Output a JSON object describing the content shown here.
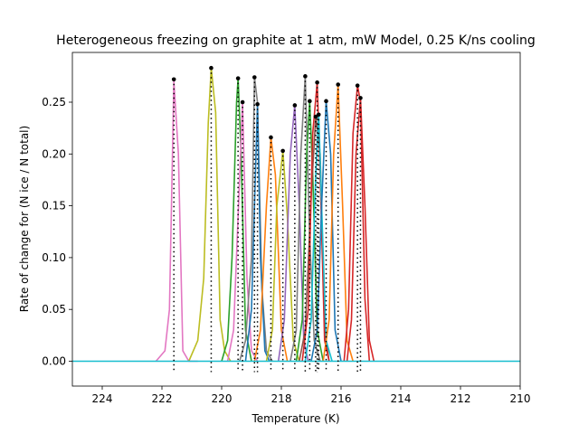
{
  "chart_data": {
    "type": "line",
    "title": "Heterogeneous freezing on graphite at 1 atm, mW Model, 0.25 K/ns cooling",
    "xlabel": "Temperature (K)",
    "ylabel": "Rate of change for (N ice / N total)",
    "xlim": [
      225,
      210
    ],
    "ylim": [
      -0.024,
      0.298
    ],
    "x_reversed": true,
    "xticks": [
      224,
      222,
      220,
      218,
      216,
      214,
      212,
      210
    ],
    "yticks": [
      0.0,
      0.05,
      0.1,
      0.15,
      0.2,
      0.25
    ],
    "xtick_labels": [
      "224",
      "222",
      "220",
      "218",
      "216",
      "214",
      "212",
      "210"
    ],
    "ytick_labels": [
      "0.00",
      "0.05",
      "0.10",
      "0.15",
      "0.20",
      "0.25"
    ],
    "grid": false,
    "legend": "none",
    "series": [
      {
        "color": "#e377c2",
        "x": [
          222.2,
          221.9,
          221.75,
          221.6,
          221.45,
          221.3,
          221.1,
          220.8
        ],
        "y": [
          0,
          0.01,
          0.05,
          0.27,
          0.2,
          0.01,
          0,
          0
        ],
        "peak": [
          221.6,
          0.272
        ]
      },
      {
        "color": "#bcbd22",
        "x": [
          221.1,
          220.8,
          220.6,
          220.45,
          220.35,
          220.2,
          220.05,
          219.9,
          219.7
        ],
        "y": [
          0,
          0.02,
          0.08,
          0.23,
          0.283,
          0.24,
          0.04,
          0.01,
          0
        ],
        "peak": [
          220.35,
          0.283
        ]
      },
      {
        "color": "#2ca02c",
        "x": [
          220.0,
          219.8,
          219.65,
          219.5,
          219.45,
          219.35,
          219.2,
          219.0
        ],
        "y": [
          0,
          0.02,
          0.1,
          0.25,
          0.273,
          0.2,
          0.03,
          0
        ],
        "peak": [
          219.45,
          0.273
        ]
      },
      {
        "color": "#e377c2",
        "x": [
          219.8,
          219.6,
          219.45,
          219.3,
          219.15,
          219.0,
          218.8
        ],
        "y": [
          0,
          0.03,
          0.14,
          0.25,
          0.08,
          0.01,
          0
        ],
        "peak": [
          219.3,
          0.25
        ]
      },
      {
        "color": "#7f7f7f",
        "x": [
          219.4,
          219.2,
          219.0,
          218.9,
          218.8,
          218.65,
          218.5,
          218.3
        ],
        "y": [
          0,
          0.02,
          0.1,
          0.274,
          0.25,
          0.07,
          0.01,
          0
        ],
        "peak": [
          218.9,
          0.274
        ]
      },
      {
        "color": "#1f77b4",
        "x": [
          219.2,
          219.0,
          218.9,
          218.8,
          218.7,
          218.55,
          218.4
        ],
        "y": [
          0,
          0.05,
          0.15,
          0.248,
          0.1,
          0.01,
          0
        ],
        "peak": [
          218.8,
          0.248
        ]
      },
      {
        "color": "#ff7f0e",
        "x": [
          218.9,
          218.7,
          218.5,
          218.35,
          218.2,
          218.0,
          217.8
        ],
        "y": [
          0,
          0.03,
          0.15,
          0.216,
          0.18,
          0.03,
          0
        ],
        "peak": [
          218.35,
          0.216
        ]
      },
      {
        "color": "#bcbd22",
        "x": [
          218.5,
          218.3,
          218.15,
          217.95,
          217.8,
          217.6,
          217.4
        ],
        "y": [
          0,
          0.03,
          0.15,
          0.203,
          0.14,
          0.02,
          0
        ],
        "peak": [
          217.95,
          0.203
        ]
      },
      {
        "color": "#9467bd",
        "x": [
          218.1,
          217.9,
          217.7,
          217.55,
          217.4,
          217.25,
          217.1
        ],
        "y": [
          0,
          0.04,
          0.2,
          0.247,
          0.15,
          0.02,
          0
        ],
        "peak": [
          217.55,
          0.247
        ]
      },
      {
        "color": "#7f7f7f",
        "x": [
          217.7,
          217.5,
          217.35,
          217.2,
          217.05,
          216.9,
          216.7
        ],
        "y": [
          0,
          0.03,
          0.2,
          0.275,
          0.12,
          0.02,
          0
        ],
        "peak": [
          217.2,
          0.275
        ]
      },
      {
        "color": "#2ca02c",
        "x": [
          217.5,
          217.3,
          217.15,
          217.05,
          216.95,
          216.8,
          216.6
        ],
        "y": [
          0,
          0.04,
          0.2,
          0.251,
          0.18,
          0.03,
          0
        ],
        "peak": [
          217.05,
          0.251
        ]
      },
      {
        "color": "#8c564b",
        "x": [
          217.4,
          217.2,
          217.0,
          216.85,
          216.7,
          216.55,
          216.4
        ],
        "y": [
          0,
          0.03,
          0.16,
          0.236,
          0.2,
          0.03,
          0
        ],
        "peak": [
          216.85,
          0.236
        ]
      },
      {
        "color": "#d62728",
        "x": [
          217.3,
          217.1,
          216.95,
          216.8,
          216.7,
          216.55,
          216.4
        ],
        "y": [
          0,
          0.05,
          0.22,
          0.269,
          0.18,
          0.02,
          0
        ],
        "peak": [
          216.8,
          0.269
        ]
      },
      {
        "color": "#17becf",
        "x": [
          217.2,
          217.0,
          216.85,
          216.75,
          216.65,
          216.5,
          216.3
        ],
        "y": [
          0,
          0.04,
          0.18,
          0.238,
          0.15,
          0.02,
          0
        ],
        "peak": [
          216.75,
          0.238
        ]
      },
      {
        "color": "#1f77b4",
        "x": [
          217.0,
          216.8,
          216.65,
          216.5,
          216.35,
          216.2,
          216.0
        ],
        "y": [
          0,
          0.03,
          0.15,
          0.251,
          0.2,
          0.03,
          0
        ],
        "peak": [
          216.5,
          0.251
        ]
      },
      {
        "color": "#ff7f0e",
        "x": [
          216.6,
          216.4,
          216.25,
          216.1,
          215.95,
          215.8,
          215.6
        ],
        "y": [
          0,
          0.04,
          0.2,
          0.267,
          0.15,
          0.02,
          0
        ],
        "peak": [
          216.1,
          0.267
        ]
      },
      {
        "color": "#d62728",
        "x": [
          215.9,
          215.75,
          215.6,
          215.45,
          215.35,
          215.2,
          215.05
        ],
        "y": [
          0,
          0.05,
          0.22,
          0.266,
          0.25,
          0.06,
          0
        ],
        "peak": [
          215.45,
          0.266
        ]
      },
      {
        "color": "#d62728",
        "x": [
          215.8,
          215.65,
          215.5,
          215.35,
          215.2,
          215.05,
          214.9
        ],
        "y": [
          0,
          0.04,
          0.2,
          0.254,
          0.15,
          0.02,
          0
        ],
        "peak": [
          215.35,
          0.254
        ]
      },
      {
        "color": "#17becf",
        "x": [
          225,
          210
        ],
        "y": [
          0,
          0
        ],
        "peak": null
      }
    ]
  }
}
